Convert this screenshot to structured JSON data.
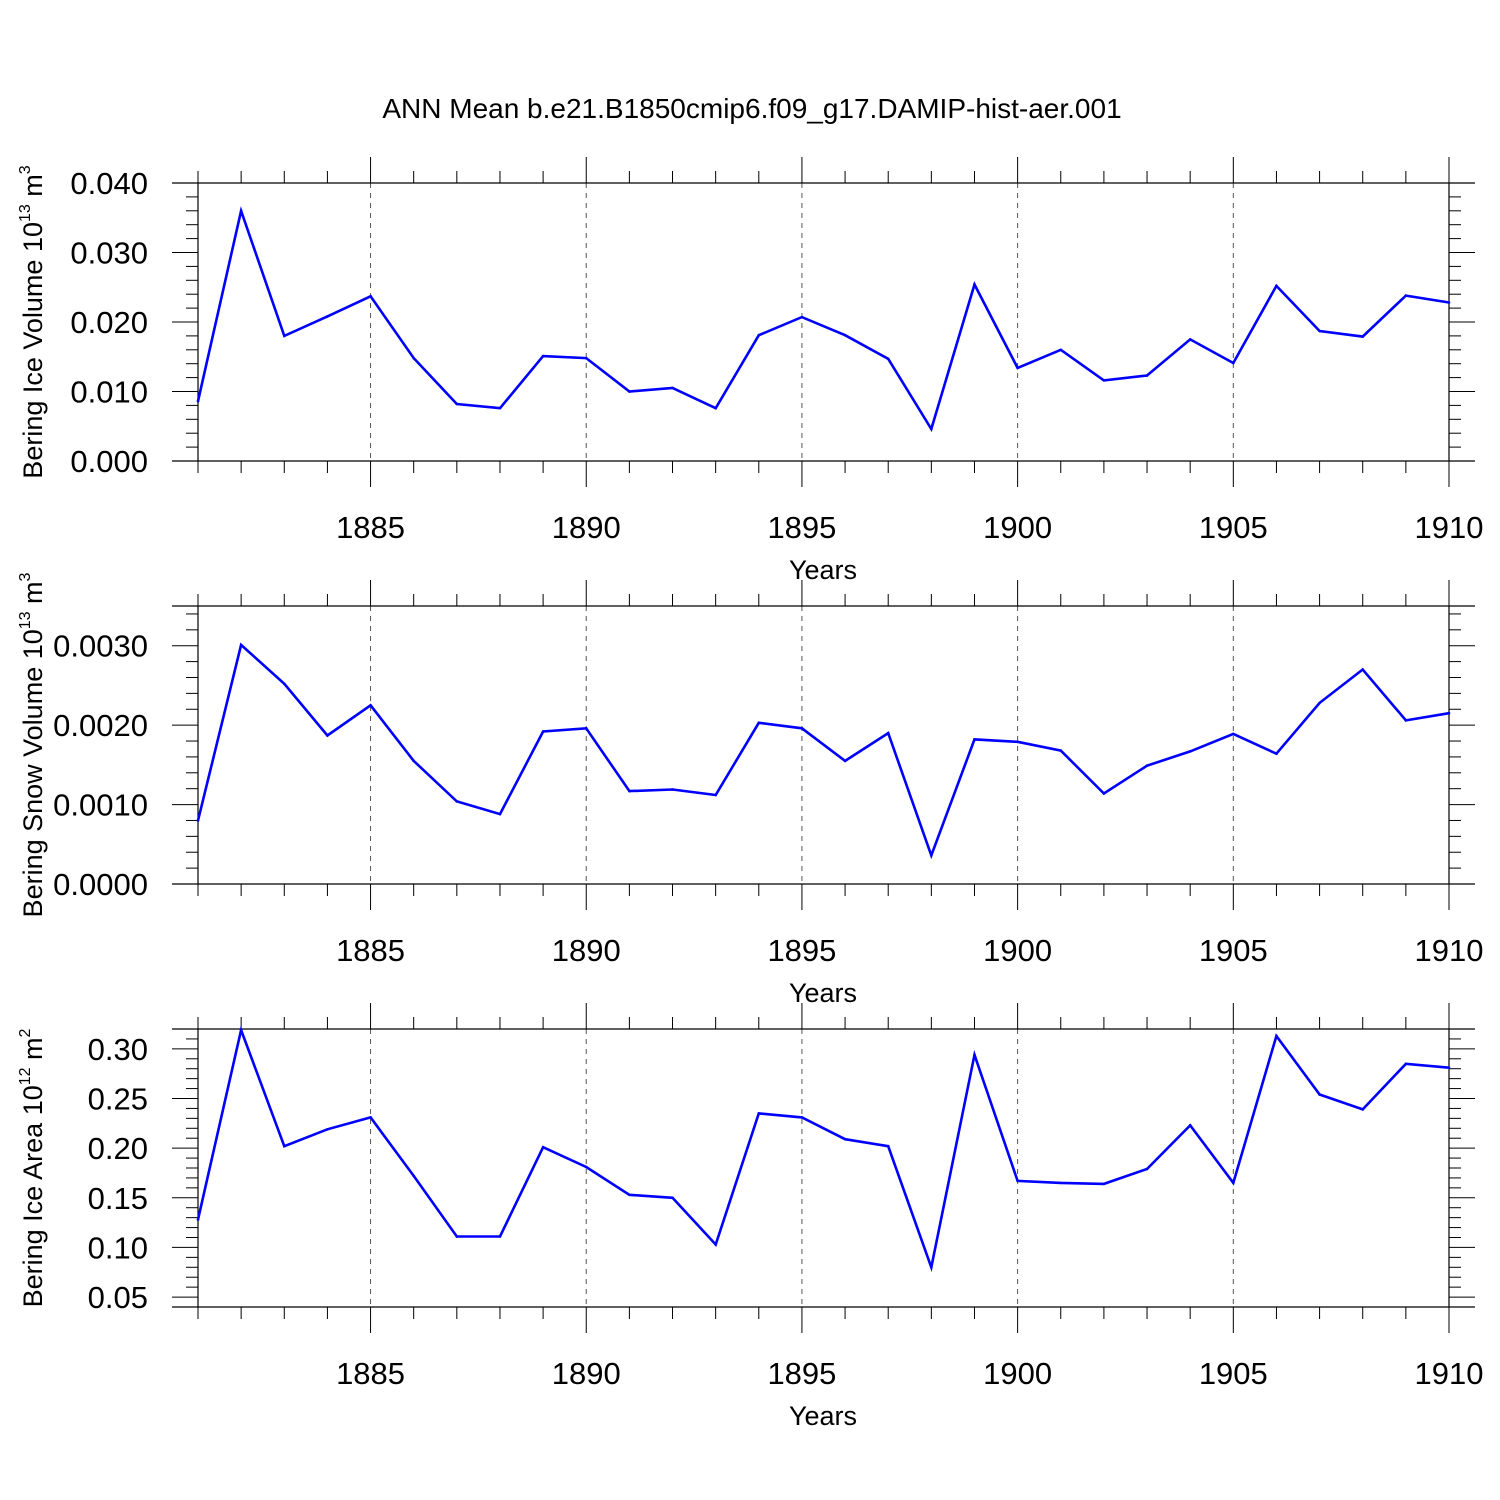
{
  "title": "ANN Mean b.e21.B1850cmip6.f09_g17.DAMIP-hist-aer.001",
  "chart_data": [
    {
      "type": "line",
      "xlabel": "Years",
      "ylabel": {
        "text": "Bering Ice Volume 10",
        "exp": "13",
        "unit": " m",
        "unit_exp": "3"
      },
      "xlim": [
        1881,
        1910
      ],
      "ylim": [
        0.0,
        0.04
      ],
      "x_ticks": [
        "1885",
        "1890",
        "1895",
        "1900",
        "1905",
        "1910"
      ],
      "y_ticks": [
        "0.000",
        "0.010",
        "0.020",
        "0.030",
        "0.040"
      ],
      "grid": "vertical dashed at labeled years",
      "x": [
        1881,
        1882,
        1883,
        1884,
        1885,
        1886,
        1887,
        1888,
        1889,
        1890,
        1891,
        1892,
        1893,
        1894,
        1895,
        1896,
        1897,
        1898,
        1899,
        1900,
        1901,
        1902,
        1903,
        1904,
        1905,
        1906,
        1907,
        1908,
        1909,
        1910
      ],
      "values": [
        0.0086,
        0.036,
        0.018,
        0.0208,
        0.0237,
        0.0148,
        0.0082,
        0.0076,
        0.0151,
        0.0148,
        0.01,
        0.0105,
        0.0076,
        0.0181,
        0.0207,
        0.0181,
        0.0147,
        0.0046,
        0.0254,
        0.0134,
        0.016,
        0.0116,
        0.0123,
        0.0175,
        0.0141,
        0.0252,
        0.0187,
        0.0179,
        0.0238,
        0.0228
      ],
      "color": "#0000ff"
    },
    {
      "type": "line",
      "xlabel": "Years",
      "ylabel": {
        "text": "Bering Snow Volume 10",
        "exp": "13",
        "unit": " m",
        "unit_exp": "3"
      },
      "xlim": [
        1881,
        1910
      ],
      "ylim": [
        0.0,
        0.0035
      ],
      "x_ticks": [
        "1885",
        "1890",
        "1895",
        "1900",
        "1905",
        "1910"
      ],
      "y_ticks": [
        "0.0000",
        "0.0010",
        "0.0020",
        "0.0030"
      ],
      "grid": "vertical dashed at labeled years",
      "x": [
        1881,
        1882,
        1883,
        1884,
        1885,
        1886,
        1887,
        1888,
        1889,
        1890,
        1891,
        1892,
        1893,
        1894,
        1895,
        1896,
        1897,
        1898,
        1899,
        1900,
        1901,
        1902,
        1903,
        1904,
        1905,
        1906,
        1907,
        1908,
        1909,
        1910
      ],
      "values": [
        0.0008,
        0.00301,
        0.00252,
        0.00187,
        0.00225,
        0.00155,
        0.00104,
        0.00088,
        0.00192,
        0.00196,
        0.00117,
        0.00119,
        0.00112,
        0.00203,
        0.00196,
        0.00155,
        0.0019,
        0.00036,
        0.00182,
        0.00179,
        0.00168,
        0.00114,
        0.00149,
        0.00167,
        0.00189,
        0.00164,
        0.00228,
        0.0027,
        0.00206,
        0.00215
      ],
      "color": "#0000ff"
    },
    {
      "type": "line",
      "xlabel": "Years",
      "ylabel": {
        "text": "Bering Ice Area 10",
        "exp": "12",
        "unit": " m",
        "unit_exp": "2"
      },
      "xlim": [
        1881,
        1910
      ],
      "ylim": [
        0.04,
        0.32
      ],
      "x_ticks": [
        "1885",
        "1890",
        "1895",
        "1900",
        "1905",
        "1910"
      ],
      "y_ticks": [
        "0.05",
        "0.10",
        "0.15",
        "0.20",
        "0.25",
        "0.30"
      ],
      "grid": "vertical dashed at labeled years",
      "x": [
        1881,
        1882,
        1883,
        1884,
        1885,
        1886,
        1887,
        1888,
        1889,
        1890,
        1891,
        1892,
        1893,
        1894,
        1895,
        1896,
        1897,
        1898,
        1899,
        1900,
        1901,
        1902,
        1903,
        1904,
        1905,
        1906,
        1907,
        1908,
        1909,
        1910
      ],
      "values": [
        0.128,
        0.319,
        0.202,
        0.219,
        0.231,
        0.172,
        0.111,
        0.111,
        0.201,
        0.181,
        0.153,
        0.15,
        0.103,
        0.235,
        0.231,
        0.209,
        0.202,
        0.08,
        0.294,
        0.167,
        0.165,
        0.164,
        0.179,
        0.223,
        0.165,
        0.313,
        0.254,
        0.239,
        0.285,
        0.281
      ],
      "color": "#0000ff"
    }
  ]
}
